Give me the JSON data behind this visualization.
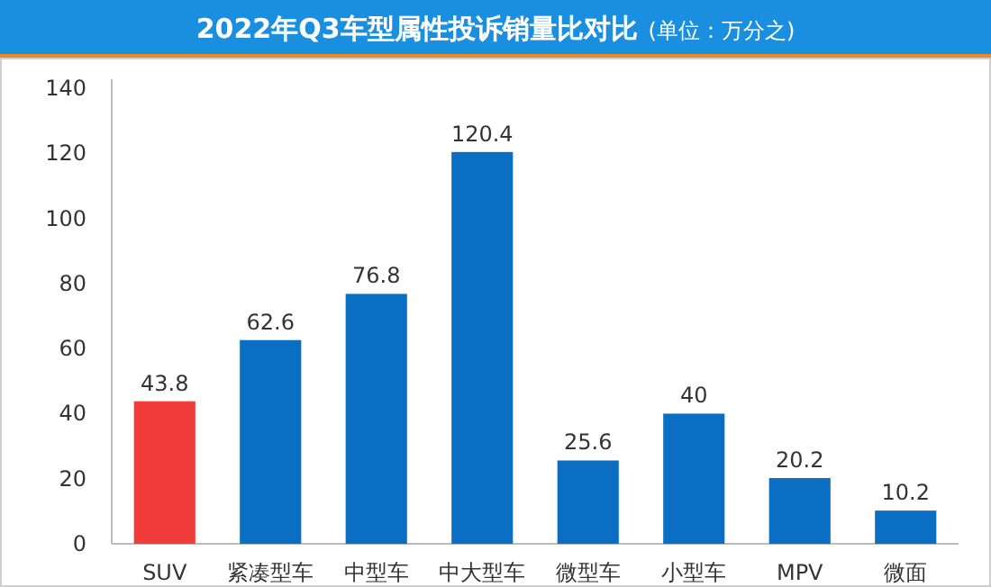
{
  "chart_data": {
    "type": "bar",
    "title": "2022年Q3车型属性投诉销量比对比",
    "subtitle": "(单位：万分之)",
    "categories": [
      "SUV",
      "紧凑型车",
      "中型车",
      "中大型车",
      "微型车",
      "小型车",
      "MPV",
      "微面"
    ],
    "values": [
      43.8,
      62.6,
      76.8,
      120.4,
      25.6,
      40,
      20.2,
      10.2
    ],
    "colors": [
      "#f23b3b",
      "#0a6fc2",
      "#0a6fc2",
      "#0a6fc2",
      "#0a6fc2",
      "#0a6fc2",
      "#0a6fc2",
      "#0a6fc2"
    ],
    "ylim": [
      0,
      140
    ],
    "yticks": [
      0,
      20,
      40,
      60,
      80,
      100,
      120,
      140
    ],
    "data_labels": true,
    "grid": false
  }
}
